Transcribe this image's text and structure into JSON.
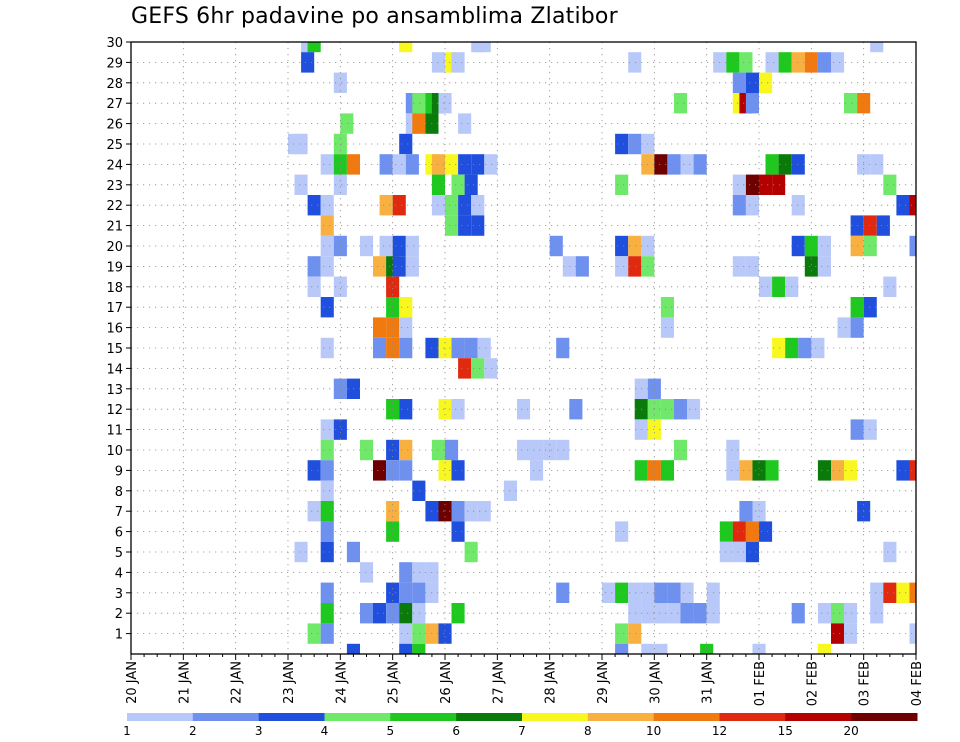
{
  "title": "GEFS 6hr padavine po ansamblima Zlatibor",
  "chart_data": {
    "type": "heatmap",
    "title": "GEFS 6hr padavine po ansamblima Zlatibor",
    "x_tick_labels": [
      "20 JAN",
      "21 JAN",
      "22 JAN",
      "23 JAN",
      "24 JAN",
      "25 JAN",
      "26 JAN",
      "27 JAN",
      "28 JAN",
      "29 JAN",
      "30 JAN",
      "31 JAN",
      "01 FEB",
      "02 FEB",
      "03 FEB",
      "04 FEB"
    ],
    "y_tick_labels": [
      "1",
      "2",
      "3",
      "4",
      "5",
      "6",
      "7",
      "8",
      "9",
      "10",
      "11",
      "12",
      "13",
      "14",
      "15",
      "16",
      "17",
      "18",
      "19",
      "20",
      "21",
      "22",
      "23",
      "24",
      "25",
      "26",
      "27",
      "28",
      "29",
      "30"
    ],
    "x_unit": "6-hour steps from 20 JAN 00Z",
    "x_range": [
      0,
      60
    ],
    "y_range": [
      0,
      30
    ],
    "grid": true,
    "colorbar": {
      "labels": [
        "1",
        "2",
        "3",
        "4",
        "5",
        "6",
        "7",
        "8",
        "10",
        "12",
        "15",
        "20"
      ],
      "colors": [
        "#b8c8f8",
        "#6e90ee",
        "#1f4fdc",
        "#70e86a",
        "#1ec81e",
        "#0a7a0a",
        "#f8f820",
        "#f8b040",
        "#f07a10",
        "#e02a10",
        "#b40000",
        "#6e0000"
      ]
    },
    "cells": [
      [
        13.5,
        30,
        0
      ],
      [
        14,
        30,
        4
      ],
      [
        21,
        30,
        6
      ],
      [
        26.5,
        30,
        0
      ],
      [
        27,
        30,
        0
      ],
      [
        57,
        30,
        0
      ],
      [
        13.5,
        29,
        2
      ],
      [
        23.5,
        29,
        0
      ],
      [
        24.5,
        29,
        6
      ],
      [
        25,
        29,
        0
      ],
      [
        38.5,
        29,
        0
      ],
      [
        45,
        29,
        0
      ],
      [
        46,
        29,
        4
      ],
      [
        47,
        29,
        3
      ],
      [
        49,
        29,
        0
      ],
      [
        50,
        29,
        4
      ],
      [
        51,
        29,
        7
      ],
      [
        52,
        29,
        8
      ],
      [
        53,
        29,
        1
      ],
      [
        54,
        29,
        0
      ],
      [
        16,
        28,
        0
      ],
      [
        46.5,
        28,
        1
      ],
      [
        47.5,
        28,
        2
      ],
      [
        48.5,
        28,
        6
      ],
      [
        21.5,
        27,
        1
      ],
      [
        22,
        27,
        3
      ],
      [
        23,
        27,
        4
      ],
      [
        23.5,
        27,
        5
      ],
      [
        24,
        27,
        0
      ],
      [
        42,
        27,
        3
      ],
      [
        46.5,
        27,
        6
      ],
      [
        47,
        27,
        10
      ],
      [
        47.5,
        27,
        1
      ],
      [
        55,
        27,
        3
      ],
      [
        56,
        27,
        8
      ],
      [
        16.5,
        26,
        3
      ],
      [
        21.5,
        26,
        0
      ],
      [
        22,
        26,
        8
      ],
      [
        23,
        26,
        5
      ],
      [
        25.5,
        26,
        0
      ],
      [
        12.5,
        25,
        0
      ],
      [
        13,
        25,
        0
      ],
      [
        16,
        25,
        3
      ],
      [
        21,
        25,
        2
      ],
      [
        37.5,
        25,
        2
      ],
      [
        38.5,
        25,
        1
      ],
      [
        39.5,
        25,
        0
      ],
      [
        15,
        24,
        0
      ],
      [
        16,
        24,
        4
      ],
      [
        17,
        24,
        8
      ],
      [
        19.5,
        24,
        1
      ],
      [
        20.5,
        24,
        0
      ],
      [
        21.5,
        24,
        1
      ],
      [
        23,
        24,
        6
      ],
      [
        23.5,
        24,
        7
      ],
      [
        24.5,
        24,
        6
      ],
      [
        25.5,
        24,
        2
      ],
      [
        26.5,
        24,
        2
      ],
      [
        27.5,
        24,
        0
      ],
      [
        39.5,
        24,
        7
      ],
      [
        40.5,
        24,
        11
      ],
      [
        41.5,
        24,
        1
      ],
      [
        42.5,
        24,
        0
      ],
      [
        43.5,
        24,
        1
      ],
      [
        49,
        24,
        4
      ],
      [
        50,
        24,
        5
      ],
      [
        51,
        24,
        2
      ],
      [
        56,
        24,
        0
      ],
      [
        57,
        24,
        0
      ],
      [
        13,
        23,
        0
      ],
      [
        16,
        23,
        0
      ],
      [
        23.5,
        23,
        4
      ],
      [
        25,
        23,
        3
      ],
      [
        26,
        23,
        2
      ],
      [
        37.5,
        23,
        3
      ],
      [
        46.5,
        23,
        0
      ],
      [
        47.5,
        23,
        11
      ],
      [
        48.5,
        23,
        10
      ],
      [
        49.5,
        23,
        10
      ],
      [
        58,
        23,
        3
      ],
      [
        14,
        22,
        2
      ],
      [
        15,
        22,
        0
      ],
      [
        19.5,
        22,
        7
      ],
      [
        20.5,
        22,
        9
      ],
      [
        23.5,
        22,
        0
      ],
      [
        24.5,
        22,
        3
      ],
      [
        25.5,
        22,
        2
      ],
      [
        26.5,
        22,
        0
      ],
      [
        46.5,
        22,
        1
      ],
      [
        47.5,
        22,
        0
      ],
      [
        51,
        22,
        0
      ],
      [
        59,
        22,
        2
      ],
      [
        60,
        22,
        10
      ],
      [
        15,
        21,
        7
      ],
      [
        24.5,
        21,
        3
      ],
      [
        25.5,
        21,
        2
      ],
      [
        26.5,
        21,
        2
      ],
      [
        55.5,
        21,
        2
      ],
      [
        56.5,
        21,
        9
      ],
      [
        57.5,
        21,
        2
      ],
      [
        15,
        20,
        0
      ],
      [
        16,
        20,
        1
      ],
      [
        18,
        20,
        0
      ],
      [
        19.5,
        20,
        0
      ],
      [
        20.5,
        20,
        2
      ],
      [
        21.5,
        20,
        0
      ],
      [
        32.5,
        20,
        1
      ],
      [
        37.5,
        20,
        2
      ],
      [
        38.5,
        20,
        7
      ],
      [
        39.5,
        20,
        0
      ],
      [
        51,
        20,
        2
      ],
      [
        52,
        20,
        4
      ],
      [
        53,
        20,
        0
      ],
      [
        55.5,
        20,
        7
      ],
      [
        56.5,
        20,
        3
      ],
      [
        60,
        20,
        1
      ],
      [
        14,
        19,
        1
      ],
      [
        15,
        19,
        0
      ],
      [
        19,
        19,
        7
      ],
      [
        20,
        19,
        5
      ],
      [
        20.5,
        19,
        2
      ],
      [
        21.5,
        19,
        0
      ],
      [
        33.5,
        19,
        0
      ],
      [
        34.5,
        19,
        1
      ],
      [
        37.5,
        19,
        0
      ],
      [
        38.5,
        19,
        9
      ],
      [
        39.5,
        19,
        3
      ],
      [
        46.5,
        19,
        0
      ],
      [
        47.5,
        19,
        0
      ],
      [
        52,
        19,
        5
      ],
      [
        53,
        19,
        0
      ],
      [
        14,
        18,
        0
      ],
      [
        16,
        18,
        0
      ],
      [
        20,
        18,
        9
      ],
      [
        48.5,
        18,
        0
      ],
      [
        49.5,
        18,
        4
      ],
      [
        50.5,
        18,
        0
      ],
      [
        58,
        18,
        0
      ],
      [
        15,
        17,
        2
      ],
      [
        20,
        17,
        4
      ],
      [
        21,
        17,
        6
      ],
      [
        41,
        17,
        3
      ],
      [
        55.5,
        17,
        4
      ],
      [
        56.5,
        17,
        2
      ],
      [
        19,
        16,
        8
      ],
      [
        20,
        16,
        8
      ],
      [
        21,
        16,
        0
      ],
      [
        41,
        16,
        0
      ],
      [
        54.5,
        16,
        0
      ],
      [
        55.5,
        16,
        1
      ],
      [
        15,
        15,
        0
      ],
      [
        19,
        15,
        1
      ],
      [
        20,
        15,
        8
      ],
      [
        21,
        15,
        1
      ],
      [
        23,
        15,
        2
      ],
      [
        24,
        15,
        6
      ],
      [
        25,
        15,
        1
      ],
      [
        26,
        15,
        1
      ],
      [
        27,
        15,
        0
      ],
      [
        33,
        15,
        1
      ],
      [
        49.5,
        15,
        6
      ],
      [
        50.5,
        15,
        4
      ],
      [
        51.5,
        15,
        1
      ],
      [
        52.5,
        15,
        0
      ],
      [
        25.5,
        14,
        9
      ],
      [
        26.5,
        14,
        3
      ],
      [
        27.5,
        14,
        0
      ],
      [
        16,
        13,
        1
      ],
      [
        17,
        13,
        2
      ],
      [
        39,
        13,
        0
      ],
      [
        40,
        13,
        1
      ],
      [
        20,
        12,
        4
      ],
      [
        21,
        12,
        2
      ],
      [
        24,
        12,
        6
      ],
      [
        25,
        12,
        0
      ],
      [
        30,
        12,
        0
      ],
      [
        34,
        12,
        1
      ],
      [
        39,
        12,
        5
      ],
      [
        40,
        12,
        3
      ],
      [
        41,
        12,
        3
      ],
      [
        42,
        12,
        1
      ],
      [
        43,
        12,
        0
      ],
      [
        15,
        11,
        0
      ],
      [
        16,
        11,
        2
      ],
      [
        39,
        11,
        0
      ],
      [
        40,
        11,
        6
      ],
      [
        55.5,
        11,
        1
      ],
      [
        56.5,
        11,
        0
      ],
      [
        15,
        10,
        3
      ],
      [
        18,
        10,
        3
      ],
      [
        20,
        10,
        2
      ],
      [
        21,
        10,
        7
      ],
      [
        23.5,
        10,
        3
      ],
      [
        24.5,
        10,
        1
      ],
      [
        30,
        10,
        0
      ],
      [
        31,
        10,
        0
      ],
      [
        32,
        10,
        0
      ],
      [
        33,
        10,
        0
      ],
      [
        42,
        10,
        3
      ],
      [
        46,
        10,
        0
      ],
      [
        14,
        9,
        2
      ],
      [
        15,
        9,
        1
      ],
      [
        19,
        9,
        11
      ],
      [
        20,
        9,
        1
      ],
      [
        21,
        9,
        1
      ],
      [
        24,
        9,
        6
      ],
      [
        25,
        9,
        2
      ],
      [
        31,
        9,
        0
      ],
      [
        39,
        9,
        4
      ],
      [
        40,
        9,
        8
      ],
      [
        41,
        9,
        4
      ],
      [
        46,
        9,
        0
      ],
      [
        47,
        9,
        7
      ],
      [
        48,
        9,
        5
      ],
      [
        49,
        9,
        4
      ],
      [
        53,
        9,
        5
      ],
      [
        54,
        9,
        7
      ],
      [
        55,
        9,
        6
      ],
      [
        59,
        9,
        2
      ],
      [
        60,
        9,
        9
      ],
      [
        15,
        8,
        0
      ],
      [
        22,
        8,
        2
      ],
      [
        29,
        8,
        0
      ],
      [
        14,
        7,
        0
      ],
      [
        15,
        7,
        4
      ],
      [
        20,
        7,
        7
      ],
      [
        23,
        7,
        2
      ],
      [
        24,
        7,
        11
      ],
      [
        25,
        7,
        1
      ],
      [
        26,
        7,
        0
      ],
      [
        27,
        7,
        0
      ],
      [
        47,
        7,
        1
      ],
      [
        48,
        7,
        0
      ],
      [
        56,
        7,
        2
      ],
      [
        15,
        6,
        1
      ],
      [
        20,
        6,
        4
      ],
      [
        25,
        6,
        2
      ],
      [
        37.5,
        6,
        0
      ],
      [
        45.5,
        6,
        4
      ],
      [
        46.5,
        6,
        9
      ],
      [
        47.5,
        6,
        8
      ],
      [
        48.5,
        6,
        2
      ],
      [
        13,
        5,
        0
      ],
      [
        15,
        5,
        2
      ],
      [
        17,
        5,
        1
      ],
      [
        26,
        5,
        3
      ],
      [
        45.5,
        5,
        0
      ],
      [
        46.5,
        5,
        0
      ],
      [
        47.5,
        5,
        2
      ],
      [
        58,
        5,
        0
      ],
      [
        18,
        4,
        0
      ],
      [
        21,
        4,
        1
      ],
      [
        22,
        4,
        0
      ],
      [
        23,
        4,
        0
      ],
      [
        15,
        3,
        1
      ],
      [
        20,
        3,
        2
      ],
      [
        21,
        3,
        1
      ],
      [
        22,
        3,
        1
      ],
      [
        23,
        3,
        0
      ],
      [
        33,
        3,
        1
      ],
      [
        36.5,
        3,
        0
      ],
      [
        37.5,
        3,
        4
      ],
      [
        38.5,
        3,
        0
      ],
      [
        39.5,
        3,
        0
      ],
      [
        40.5,
        3,
        1
      ],
      [
        41.5,
        3,
        1
      ],
      [
        42.5,
        3,
        0
      ],
      [
        44.5,
        3,
        0
      ],
      [
        57,
        3,
        0
      ],
      [
        58,
        3,
        9
      ],
      [
        59,
        3,
        6
      ],
      [
        60,
        3,
        8
      ],
      [
        15,
        2,
        4
      ],
      [
        18,
        2,
        1
      ],
      [
        19,
        2,
        2
      ],
      [
        20,
        2,
        1
      ],
      [
        21,
        2,
        5
      ],
      [
        22,
        2,
        0
      ],
      [
        25,
        2,
        4
      ],
      [
        38.5,
        2,
        0
      ],
      [
        39.5,
        2,
        0
      ],
      [
        40.5,
        2,
        0
      ],
      [
        41.5,
        2,
        0
      ],
      [
        42.5,
        2,
        1
      ],
      [
        43.5,
        2,
        1
      ],
      [
        44.5,
        2,
        0
      ],
      [
        51,
        2,
        1
      ],
      [
        53,
        2,
        0
      ],
      [
        54,
        2,
        3
      ],
      [
        55,
        2,
        0
      ],
      [
        57,
        2,
        0
      ],
      [
        14,
        1,
        3
      ],
      [
        15,
        1,
        1
      ],
      [
        21,
        1,
        0
      ],
      [
        22,
        1,
        3
      ],
      [
        23,
        1,
        7
      ],
      [
        24,
        1,
        2
      ],
      [
        37.5,
        1,
        3
      ],
      [
        38.5,
        1,
        7
      ],
      [
        54,
        1,
        10
      ],
      [
        55,
        1,
        0
      ],
      [
        60,
        1,
        0
      ],
      [
        17,
        0,
        2
      ],
      [
        21,
        0,
        2
      ],
      [
        22,
        0,
        4
      ],
      [
        37.5,
        0,
        1
      ],
      [
        39.5,
        0,
        0
      ],
      [
        40.5,
        0,
        0
      ],
      [
        44,
        0,
        4
      ],
      [
        48,
        0,
        0
      ],
      [
        53,
        0,
        6
      ]
    ]
  }
}
